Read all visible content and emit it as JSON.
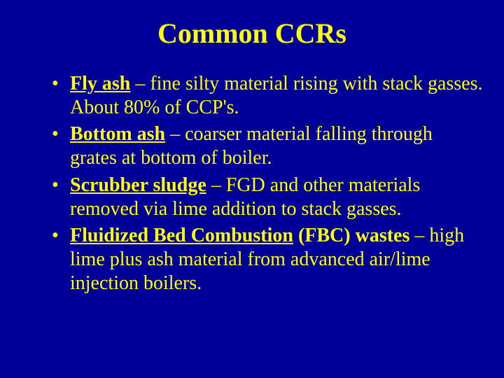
{
  "slide": {
    "title": "Common CCRs",
    "background_color": "#000099",
    "text_color": "#ffff00",
    "title_fontsize": 40,
    "body_fontsize": 28,
    "font_family": "Times New Roman",
    "bullets": [
      {
        "term": "Fly ash",
        "rest": " – fine silty material rising with stack gasses. About 80% of CCP's."
      },
      {
        "term": "Bottom ash",
        "rest": " – coarser material falling through grates at bottom of boiler."
      },
      {
        "term": "Scrubber sludge",
        "rest": " – FGD and other materials removed via lime addition to stack gasses."
      },
      {
        "term": "Fluidized Bed Combustion",
        "abbrev": " (FBC) wastes",
        "rest": " – high lime plus ash material from advanced air/lime injection boilers."
      }
    ]
  }
}
